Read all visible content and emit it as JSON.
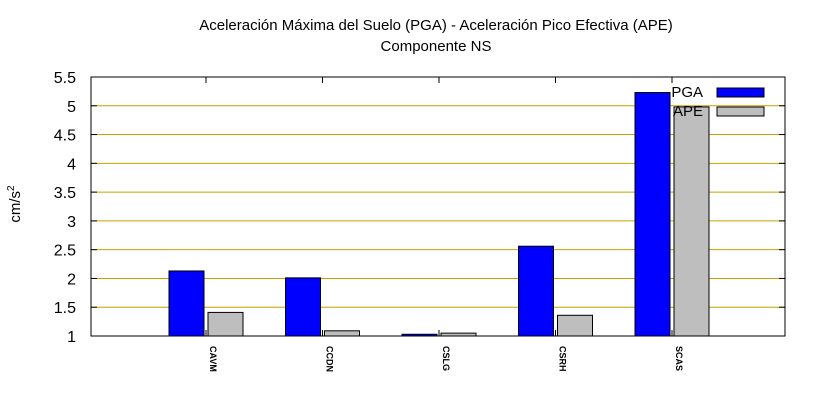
{
  "title_line1": "Aceleración Máxima del Suelo (PGA) -  Aceleración Pico Efectiva (APE)",
  "title_line2": "Componente NS",
  "ylabel_base": "cm/s",
  "ylabel_exp": "2",
  "colors": {
    "pga": "#0000ff",
    "ape": "#bebebe",
    "grid": "#c8a000",
    "axis": "#000000"
  },
  "chart_data": {
    "type": "bar",
    "title": "Aceleración Máxima del Suelo (PGA) -  Aceleración Pico Efectiva (APE)",
    "subtitle": "Componente NS",
    "xlabel": "",
    "ylabel": "cm/s2",
    "categories": [
      "CAVM",
      "CCDN",
      "CSLG",
      "CSRH",
      "SCAS"
    ],
    "series": [
      {
        "name": "PGA",
        "values": [
          2.13,
          2.01,
          1.03,
          2.56,
          5.23
        ]
      },
      {
        "name": "APE",
        "values": [
          1.41,
          1.09,
          1.05,
          1.36,
          4.98
        ]
      }
    ],
    "ylim": [
      1,
      5.5
    ],
    "yticks": [
      "1",
      "1.5",
      "2",
      "2.5",
      "3",
      "3.5",
      "4",
      "4.5",
      "5",
      "5.5"
    ],
    "grid": "horizontal",
    "legend_position": "top-right"
  }
}
